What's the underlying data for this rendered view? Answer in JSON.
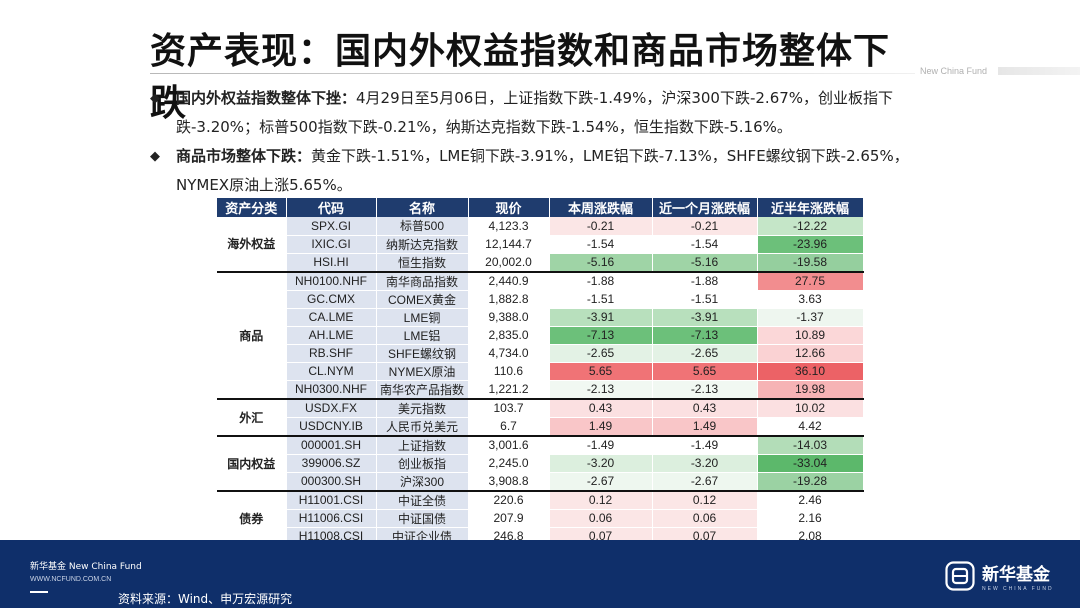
{
  "title": "资产表现：国内外权益指数和商品市场整体下跌",
  "brand_tag": "New China Fund",
  "bullets": [
    {
      "marker": "◆",
      "lead": "国内外权益指数整体下挫：",
      "text": "4月29日至5月06日，上证指数下跌-1.49%，沪深300下跌-2.67%，创业板指下跌-3.20%；标普500指数下跌-0.21%，纳斯达克指数下跌-1.54%，恒生指数下跌-5.16%。"
    },
    {
      "marker": "◆",
      "lead": "商品市场整体下跌：",
      "text": "黄金下跌-1.51%，LME铜下跌-3.91%，LME铝下跌-7.13%，SHFE螺纹钢下跌-2.65%，NYMEX原油上涨5.65%。"
    }
  ],
  "table": {
    "headers": [
      "资产分类",
      "代码",
      "名称",
      "现价",
      "本周涨跌幅",
      "近一个月涨跌幅",
      "近半年涨跌幅"
    ],
    "groups": [
      {
        "name": "海外权益",
        "rows": [
          {
            "code": "SPX.GI",
            "name": "标普500",
            "price": "4,123.3",
            "week": "-0.21",
            "month": "-0.21",
            "half": "-12.22",
            "wc": "#fbe6e6",
            "mc": "#fbe6e6",
            "hc": "#c5e6c8"
          },
          {
            "code": "IXIC.GI",
            "name": "纳斯达克指数",
            "price": "12,144.7",
            "week": "-1.54",
            "month": "-1.54",
            "half": "-23.96",
            "wc": "#ffffff",
            "mc": "#ffffff",
            "hc": "#6cc07a"
          },
          {
            "code": "HSI.HI",
            "name": "恒生指数",
            "price": "20,002.0",
            "week": "-5.16",
            "month": "-5.16",
            "half": "-19.58",
            "wc": "#9fd4a6",
            "mc": "#9fd4a6",
            "hc": "#95cf9e"
          }
        ]
      },
      {
        "name": "商品",
        "rows": [
          {
            "code": "NH0100.NHF",
            "name": "南华商品指数",
            "price": "2,440.9",
            "week": "-1.88",
            "month": "-1.88",
            "half": "27.75",
            "wc": "#ffffff",
            "mc": "#ffffff",
            "hc": "#f28d8f"
          },
          {
            "code": "GC.CMX",
            "name": "COMEX黄金",
            "price": "1,882.8",
            "week": "-1.51",
            "month": "-1.51",
            "half": "3.63",
            "wc": "#ffffff",
            "mc": "#ffffff",
            "hc": "#ffffff"
          },
          {
            "code": "CA.LME",
            "name": "LME铜",
            "price": "9,388.0",
            "week": "-3.91",
            "month": "-3.91",
            "half": "-1.37",
            "wc": "#b8e0bd",
            "mc": "#b8e0bd",
            "hc": "#eef6ef"
          },
          {
            "code": "AH.LME",
            "name": "LME铝",
            "price": "2,835.0",
            "week": "-7.13",
            "month": "-7.13",
            "half": "10.89",
            "wc": "#6cc07a",
            "mc": "#6cc07a",
            "hc": "#fbd7d8"
          },
          {
            "code": "RB.SHF",
            "name": "SHFE螺纹钢",
            "price": "4,734.0",
            "week": "-2.65",
            "month": "-2.65",
            "half": "12.66",
            "wc": "#e3f2e5",
            "mc": "#e3f2e5",
            "hc": "#fad2d3"
          },
          {
            "code": "CL.NYM",
            "name": "NYMEX原油",
            "price": "110.6",
            "week": "5.65",
            "month": "5.65",
            "half": "36.10",
            "wc": "#f07376",
            "mc": "#f07376",
            "hc": "#ec6266"
          },
          {
            "code": "NH0300.NHF",
            "name": "南华农产品指数",
            "price": "1,221.2",
            "week": "-2.13",
            "month": "-2.13",
            "half": "19.98",
            "wc": "#f1f8f2",
            "mc": "#f1f8f2",
            "hc": "#f6b3b5"
          }
        ]
      },
      {
        "name": "外汇",
        "rows": [
          {
            "code": "USDX.FX",
            "name": "美元指数",
            "price": "103.7",
            "week": "0.43",
            "month": "0.43",
            "half": "10.02",
            "wc": "#fbe0e1",
            "mc": "#fbe0e1",
            "hc": "#fbe0e1"
          },
          {
            "code": "USDCNY.IB",
            "name": "人民币兑美元",
            "price": "6.7",
            "week": "1.49",
            "month": "1.49",
            "half": "4.42",
            "wc": "#f9c6c8",
            "mc": "#f9c6c8",
            "hc": "#ffffff"
          }
        ]
      },
      {
        "name": "国内权益",
        "rows": [
          {
            "code": "000001.SH",
            "name": "上证指数",
            "price": "3,001.6",
            "week": "-1.49",
            "month": "-1.49",
            "half": "-14.03",
            "wc": "#ffffff",
            "mc": "#ffffff",
            "hc": "#b3ddb8"
          },
          {
            "code": "399006.SZ",
            "name": "创业板指",
            "price": "2,245.0",
            "week": "-3.20",
            "month": "-3.20",
            "half": "-33.04",
            "wc": "#dcefde",
            "mc": "#dcefde",
            "hc": "#5cb86b"
          },
          {
            "code": "000300.SH",
            "name": "沪深300",
            "price": "3,908.8",
            "week": "-2.67",
            "month": "-2.67",
            "half": "-19.28",
            "wc": "#eef7ef",
            "mc": "#eef7ef",
            "hc": "#9bd2a3"
          }
        ]
      },
      {
        "name": "债券",
        "rows": [
          {
            "code": "H11001.CSI",
            "name": "中证全债",
            "price": "220.6",
            "week": "0.12",
            "month": "0.12",
            "half": "2.46",
            "wc": "#fbe6e6",
            "mc": "#fbe6e6",
            "hc": "#ffffff"
          },
          {
            "code": "H11006.CSI",
            "name": "中证国债",
            "price": "207.9",
            "week": "0.06",
            "month": "0.06",
            "half": "2.16",
            "wc": "#fbe6e6",
            "mc": "#fbe6e6",
            "hc": "#ffffff"
          },
          {
            "code": "H11008.CSI",
            "name": "中证企业债",
            "price": "246.8",
            "week": "0.07",
            "month": "0.07",
            "half": "2.08",
            "wc": "#fbe6e6",
            "mc": "#fbe6e6",
            "hc": "#ffffff"
          }
        ]
      }
    ]
  },
  "footer": {
    "brand": "新华基金 New China Fund",
    "url": "WWW.NCFUND.COM.CN",
    "source": "资料来源：Wind、申万宏源研究",
    "logo_text": "新华基金",
    "logo_sub": "NEW CHINA FUND",
    "logo_icon": "new-china-fund-logo-icon"
  },
  "colors": {
    "header_bg": "#1f3c6e",
    "footer_bg": "#0f2f6a",
    "code_name_bg": "#dde3ef"
  }
}
